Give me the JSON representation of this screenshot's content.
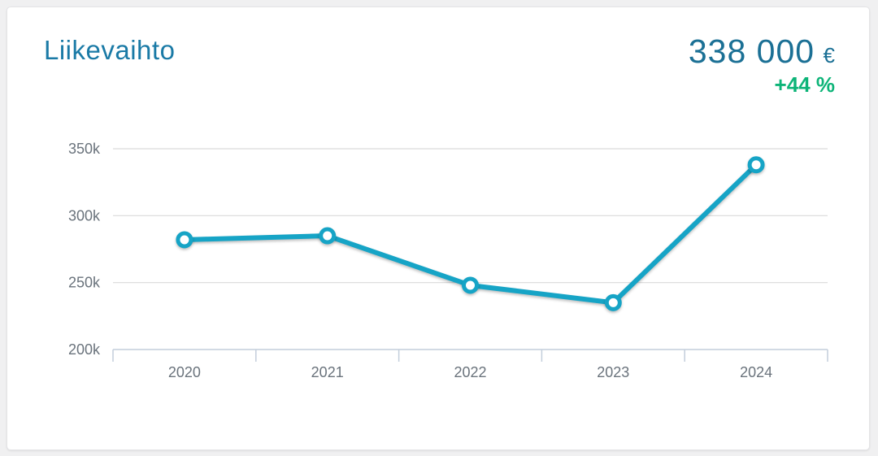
{
  "card": {
    "title": "Liikevaihto",
    "headline_value": "338 000",
    "currency_symbol": "€",
    "change_label": "+44 %"
  },
  "colors": {
    "title": "#1a7aa6",
    "value": "#1b7095",
    "positive_change": "#0db478",
    "card_background": "#ffffff",
    "page_background": "#f0f0f1"
  },
  "chart_data": {
    "type": "line",
    "title": "Liikevaihto",
    "xlabel": "",
    "ylabel": "",
    "unit": "€",
    "categories": [
      "2020",
      "2021",
      "2022",
      "2023",
      "2024"
    ],
    "series": [
      {
        "name": "Liikevaihto",
        "values": [
          282000,
          285000,
          248000,
          235000,
          338000
        ]
      }
    ],
    "ylim": [
      200000,
      350000
    ],
    "yticks": [
      {
        "value": 200000,
        "label": "200k"
      },
      {
        "value": 250000,
        "label": "250k"
      },
      {
        "value": 300000,
        "label": "300k"
      },
      {
        "value": 350000,
        "label": "350k"
      }
    ],
    "grid": "horizontal",
    "legend": "none",
    "colors": {
      "line": "#16a4c6",
      "marker_fill": "#ffffff",
      "grid": "#d9d9d9",
      "axis": "#c3cedb",
      "tick_text": "#6a737c"
    }
  }
}
